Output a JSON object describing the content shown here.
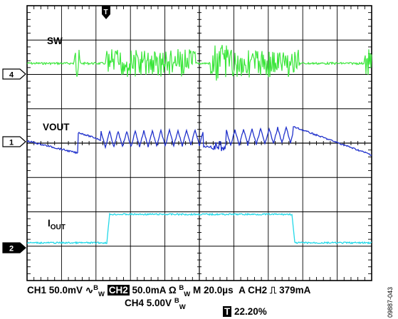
{
  "chart_data": {
    "type": "line",
    "title": "",
    "grid": true,
    "timebase": "M 20.0µs",
    "channels": [
      {
        "id": "4",
        "name": "SW",
        "color": "#3ce63c",
        "scale": "CH4 5.00V",
        "bw": "BW",
        "description": "switching node; bursts of pulses around the 1 division level"
      },
      {
        "id": "1",
        "name": "VOUT",
        "color": "#2233cc",
        "scale": "CH1 50.0mV",
        "coupling": "∿",
        "bw": "BW",
        "description": "output voltage ripple, ramps down between bursts"
      },
      {
        "id": "2",
        "name": "IOUT",
        "color": "#22d8e8",
        "scale": "CH2 50.0mA",
        "coupling": "Ω",
        "bw": "BW",
        "description": "load step: low to high at ~2.8 div, back low at ~8.7 div"
      }
    ],
    "trigger": {
      "text": "A  CH2",
      "slope": "rising",
      "level": "379mA"
    },
    "trigger_position": "22.20%"
  },
  "labels": {
    "sw": "SW",
    "vout": "VOUT",
    "iout_main": "I",
    "iout_sub": "OUT",
    "marker4": "4",
    "marker1": "1",
    "marker2": "2",
    "trigger_marker": "T",
    "t_marker_bottom": "T"
  },
  "footer": {
    "ch1": "CH1 50.0mV",
    "ch1_coupling": "∿",
    "bw_b": "B",
    "bw_w": "W",
    "ch2_tag": "CH2",
    "ch2_scale": "50.0mA",
    "ch2_coupling": "Ω",
    "timebase": "M 20.0µs",
    "trigger": "A  CH2",
    "trigger_slope": "⎍",
    "trigger_level": "379mA",
    "ch4": "CH4 5.00V",
    "trigger_pos": "22.20%"
  },
  "figure_id": "09887-043"
}
